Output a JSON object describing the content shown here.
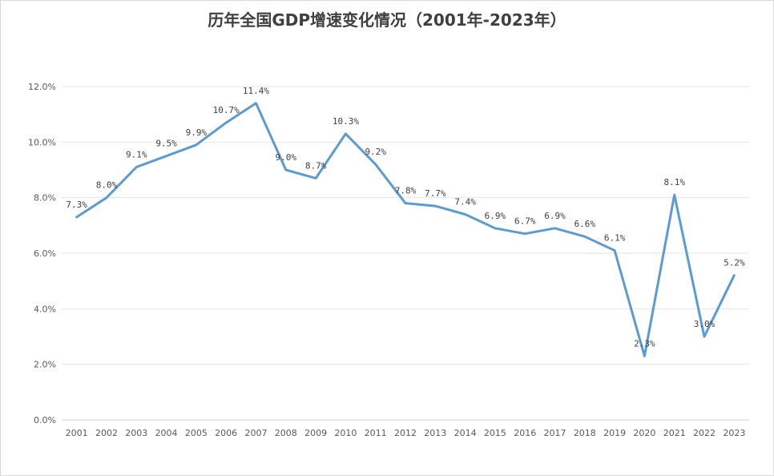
{
  "chart_data": {
    "type": "line",
    "title": "历年全国GDP增速变化情况（2001年-2023年）",
    "xlabel": "",
    "ylabel": "",
    "ylim": [
      0,
      12
    ],
    "y_ticks": [
      "0.0%",
      "2.0%",
      "4.0%",
      "6.0%",
      "8.0%",
      "10.0%",
      "12.0%"
    ],
    "y_tick_values": [
      0,
      2,
      4,
      6,
      8,
      10,
      12
    ],
    "grid": "horizontal",
    "legend": "none",
    "categories": [
      "2001",
      "2002",
      "2003",
      "2004",
      "2005",
      "2006",
      "2007",
      "2008",
      "2009",
      "2010",
      "2011",
      "2012",
      "2013",
      "2014",
      "2015",
      "2016",
      "2017",
      "2018",
      "2019",
      "2020",
      "2021",
      "2022",
      "2023"
    ],
    "series": [
      {
        "values": [
          7.3,
          8.0,
          9.1,
          9.5,
          9.9,
          10.7,
          11.4,
          9.0,
          8.7,
          10.3,
          9.2,
          7.8,
          7.7,
          7.4,
          6.9,
          6.7,
          6.9,
          6.6,
          6.1,
          2.3,
          8.1,
          3.0,
          5.2
        ],
        "labels": [
          "7.3%",
          "8.0%",
          "9.1%",
          "9.5%",
          "9.9%",
          "10.7%",
          "11.4%",
          "9.0%",
          "8.7%",
          "10.3%",
          "9.2%",
          "7.8%",
          "7.7%",
          "7.4%",
          "6.9%",
          "6.7%",
          "6.9%",
          "6.6%",
          "6.1%",
          "2.3%",
          "8.1%",
          "3.0%",
          "5.2%"
        ],
        "color": "#5b9bd5"
      }
    ]
  }
}
